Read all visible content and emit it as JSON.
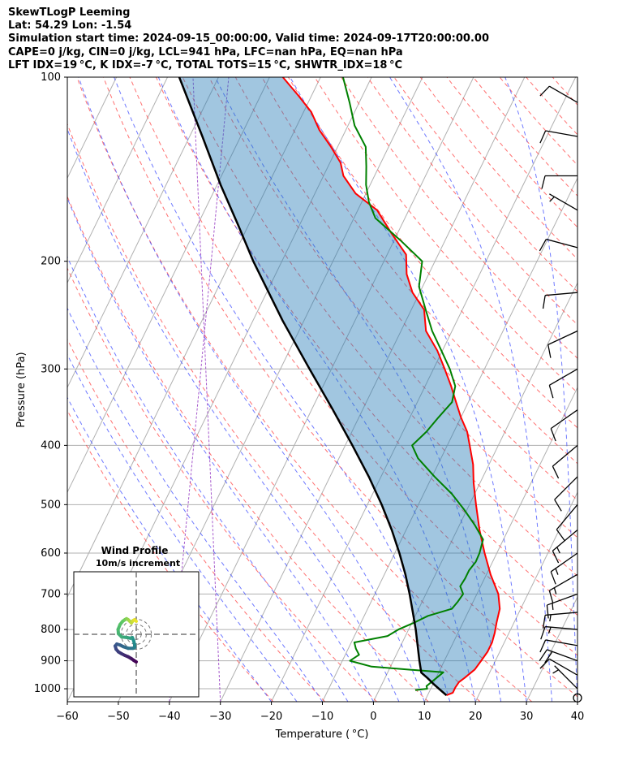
{
  "header": {
    "line1": "SkewTLogP Leeming",
    "line2": "Lat: 54.29   Lon: -1.54",
    "line3": "Simulation start time: 2024-09-15_00:00:00, Valid time: 2024-09-17T20:00:00.00",
    "line4": "CAPE=0 j/kg, CIN=0 j/kg, LCL=941 hPa, LFC=nan hPa, EQ=nan hPa",
    "line5": "LFT IDX=19 °C, K IDX=-7 °C, TOTAL TOTS=15 °C, SHWTR_IDX=18 °C"
  },
  "chart_data": {
    "type": "skewt-logp",
    "xlabel": "Temperature ( °C)",
    "ylabel": "Pressure (hPa)",
    "xlim": [
      -60,
      40
    ],
    "ylim": [
      1050,
      100
    ],
    "x_ticks": [
      -60,
      -50,
      -40,
      -30,
      -20,
      -10,
      0,
      10,
      20,
      30,
      40
    ],
    "x_tick_labels": [
      "−60",
      "−50",
      "−40",
      "−30",
      "−20",
      "−10",
      "0",
      "10",
      "20",
      "30",
      "40"
    ],
    "y_ticks": [
      1000,
      900,
      800,
      700,
      600,
      500,
      400,
      300,
      200,
      100
    ],
    "y_tick_labels": [
      "1000",
      "900",
      "800",
      "700",
      "600",
      "500",
      "400",
      "300",
      "200",
      "100"
    ],
    "series": [
      {
        "name": "temperature",
        "color": "#ff0000",
        "p": [
          1025,
          1015,
          995,
          975,
          960,
          930,
          900,
          870,
          840,
          810,
          780,
          740,
          700,
          650,
          600,
          550,
          500,
          460,
          430,
          400,
          380,
          360,
          340,
          320,
          300,
          280,
          260,
          240,
          225,
          210,
          195,
          180,
          165,
          155,
          145,
          138,
          130,
          122,
          114,
          107,
          100
        ],
        "t": [
          13.7,
          14.7,
          14.7,
          14.9,
          15.6,
          16.8,
          17.2,
          17.6,
          17.6,
          17.2,
          16.6,
          15.9,
          14.2,
          10.8,
          7.6,
          4.4,
          1.3,
          -1.3,
          -3.1,
          -5.6,
          -7.4,
          -10.0,
          -12.4,
          -14.9,
          -17.8,
          -21.0,
          -25.1,
          -27.5,
          -31.4,
          -34.3,
          -36.3,
          -41.2,
          -46.2,
          -52.0,
          -56.1,
          -57.9,
          -61.3,
          -65.2,
          -68.5,
          -72.7,
          -77.4
        ]
      },
      {
        "name": "dewpoint",
        "color": "#008000",
        "p": [
          1005,
          1000,
          990,
          960,
          940,
          920,
          900,
          880,
          860,
          840,
          820,
          800,
          780,
          760,
          740,
          720,
          700,
          680,
          660,
          640,
          620,
          600,
          570,
          540,
          510,
          480,
          450,
          420,
          400,
          380,
          360,
          340,
          320,
          300,
          280,
          260,
          240,
          220,
          200,
          185,
          170,
          160,
          150,
          140,
          130,
          120,
          110,
          100
        ],
        "t": [
          7.1,
          9.3,
          8.9,
          10.1,
          10.9,
          -3.7,
          -8.5,
          -7.3,
          -8.5,
          -9.4,
          -3.5,
          -2.0,
          0.4,
          2.5,
          6.5,
          7.0,
          7.3,
          6.0,
          6.2,
          6.2,
          6.7,
          6.6,
          6.0,
          3.0,
          -0.5,
          -4.5,
          -9.5,
          -14.5,
          -16.9,
          -15.4,
          -14.4,
          -13.2,
          -14.1,
          -16.8,
          -20.2,
          -23.9,
          -27.2,
          -30.7,
          -32.5,
          -38.7,
          -45.8,
          -48.6,
          -50.8,
          -52.5,
          -54.5,
          -58.7,
          -61.9,
          -65.6
        ]
      },
      {
        "name": "parcel",
        "color": "#000000",
        "p": [
          1025,
          1000,
          980,
          960,
          941,
          900,
          850,
          800,
          750,
          700,
          650,
          600,
          550,
          500,
          450,
          400,
          350,
          300,
          250,
          200,
          175,
          150,
          125,
          100
        ],
        "t": [
          13.7,
          11.6,
          9.9,
          8.3,
          6.6,
          5.1,
          3.3,
          1.4,
          -0.8,
          -3.2,
          -5.9,
          -9.1,
          -12.8,
          -17.2,
          -22.4,
          -28.6,
          -35.8,
          -44.3,
          -54.2,
          -65.6,
          -71.9,
          -79.3,
          -87.5,
          -97.7
        ]
      }
    ],
    "wind_barbs": {
      "p": [
        1035,
        1000,
        950,
        900,
        850,
        800,
        750,
        700,
        650,
        600,
        550,
        500,
        450,
        400,
        350,
        300,
        260,
        225,
        190,
        165,
        145,
        125,
        110
      ],
      "speed_kt": [
        0,
        5,
        10,
        20,
        10,
        15,
        15,
        15,
        15,
        15,
        15,
        10,
        10,
        10,
        10,
        10,
        10,
        10,
        10,
        5,
        10,
        10,
        10
      ],
      "dir_deg": [
        0,
        315,
        300,
        290,
        280,
        275,
        265,
        250,
        240,
        235,
        230,
        220,
        225,
        230,
        235,
        240,
        245,
        265,
        285,
        300,
        270,
        280,
        300
      ]
    },
    "hodograph": {
      "title": "Wind Profile",
      "subtitle": "10m/s increment",
      "ring_step_ms": 10,
      "u": [
        0.0,
        -0.5,
        -1.0,
        -1.5,
        -2.0,
        -2.5,
        -3.0,
        -3.5,
        -4.2,
        -5.0,
        -5.6,
        -5.5,
        -4.5,
        -2.8,
        -1.8,
        -1.2,
        -0.8,
        -0.5,
        -0.5,
        -1.0,
        -2.5,
        -4.0,
        -5.0,
        -6.0,
        -6.5,
        -6.2,
        -5.5,
        -4.5,
        -3.5,
        -2.5,
        -1.5,
        -0.8,
        0.0
      ],
      "v": [
        4.0,
        4.5,
        4.2,
        3.5,
        4.0,
        4.5,
        4.8,
        4.5,
        4.0,
        3.0,
        1.5,
        0.2,
        -0.8,
        -1.0,
        -1.2,
        -1.0,
        -2.0,
        -3.2,
        -4.0,
        -4.3,
        -4.3,
        -3.8,
        -3.3,
        -3.0,
        -3.6,
        -4.6,
        -5.4,
        -6.0,
        -6.5,
        -6.9,
        -7.5,
        -8.0,
        -8.5
      ]
    }
  }
}
